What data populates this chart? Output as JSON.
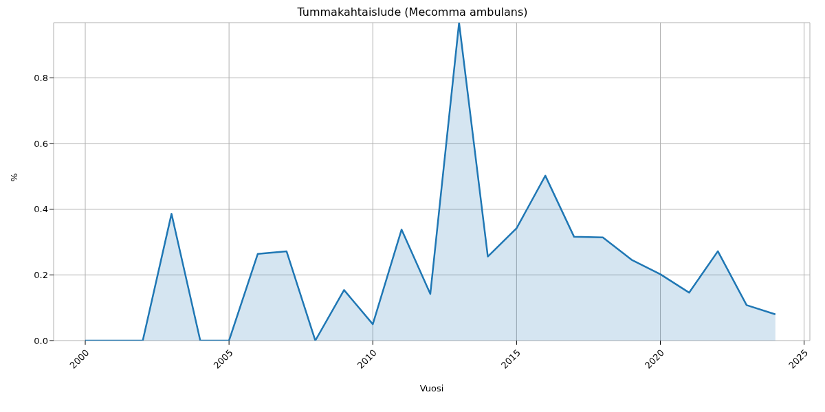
{
  "chart_data": {
    "type": "area",
    "title": "Tummakahtaislude (Mecomma ambulans)",
    "xlabel": "Vuosi",
    "ylabel": "%",
    "x": [
      2000,
      2001,
      2002,
      2003,
      2004,
      2005,
      2006,
      2007,
      2008,
      2009,
      2010,
      2011,
      2012,
      2013,
      2014,
      2015,
      2016,
      2017,
      2018,
      2019,
      2020,
      2021,
      2022,
      2023,
      2024
    ],
    "series": [
      {
        "color": "#1f77b4",
        "values": [
          0,
          0,
          0,
          0.386,
          0,
          0,
          0.264,
          0.272,
          0,
          0.154,
          0.05,
          0.338,
          0.142,
          0.968,
          0.256,
          0.342,
          0.502,
          0.316,
          0.314,
          0.246,
          0.202,
          0.146,
          0.272,
          0.108,
          0.08
        ]
      }
    ],
    "xlim": [
      1998.9,
      2025.2
    ],
    "xticks": [
      2000,
      2005,
      2010,
      2015,
      2020,
      2025
    ],
    "ylim": [
      0,
      0.968
    ],
    "yticks": [
      {
        "value": 0,
        "label": "0.0"
      },
      0.2,
      0.4,
      0.6,
      0.8
    ],
    "grid": true,
    "legend": false
  }
}
